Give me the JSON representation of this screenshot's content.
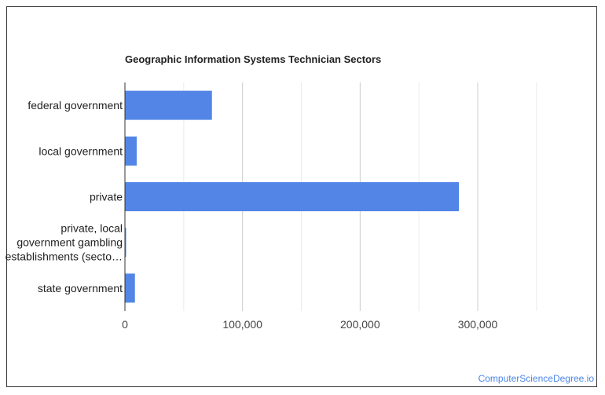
{
  "chart_data": {
    "type": "bar",
    "orientation": "horizontal",
    "title": "Geographic Information Systems Technician Sectors",
    "categories": [
      [
        "federal government"
      ],
      [
        "local government"
      ],
      [
        "private"
      ],
      [
        "private, local",
        "government gambling",
        "establishments (secto…"
      ],
      [
        "state government"
      ]
    ],
    "values": [
      74000,
      10000,
      284000,
      1000,
      8500
    ],
    "xlim": [
      0,
      400000
    ],
    "xticks": [
      0,
      100000,
      200000,
      300000
    ],
    "xtick_labels": [
      "0",
      "100,000",
      "200,000",
      "300,000"
    ],
    "grid": true,
    "legend": "none",
    "bar_color": "#5285e6"
  },
  "watermark": "ComputerScienceDegree.io"
}
